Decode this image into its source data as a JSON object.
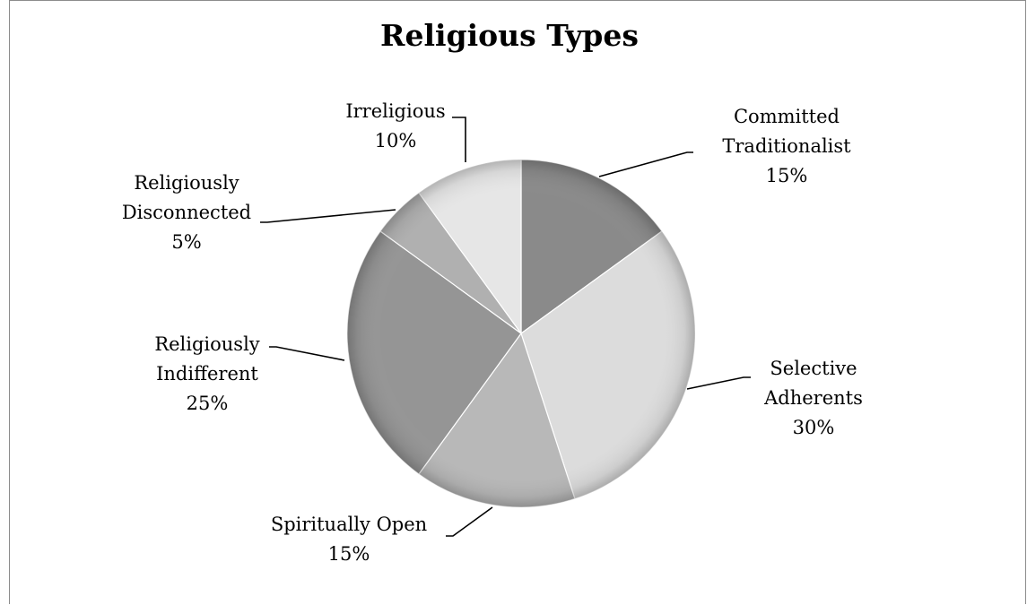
{
  "chart_data": {
    "type": "pie",
    "title": "Religious Types",
    "categories": [
      "Committed Traditionalist",
      "Selective Adherents",
      "Spiritually Open",
      "Religiously Indifferent",
      "Religiously Disconnected",
      "Irreligious"
    ],
    "values": [
      15,
      30,
      15,
      25,
      5,
      10
    ],
    "value_labels": [
      "15%",
      "30%",
      "15%",
      "25%",
      "5%",
      "10%"
    ],
    "label_lines": [
      [
        "Committed",
        "Traditionalist"
      ],
      [
        "Selective",
        "Adherents"
      ],
      [
        "Spiritually Open"
      ],
      [
        "Religiously",
        "Indifferent"
      ],
      [
        "Religiously",
        "Disconnected"
      ],
      [
        "Irreligious"
      ]
    ],
    "colors": [
      "#8a8a8a",
      "#dcdcdc",
      "#b8b8b8",
      "#959595",
      "#b0b0b0",
      "#e6e6e6"
    ],
    "legend": "none",
    "data_labels": "category and percentage with leader lines"
  }
}
